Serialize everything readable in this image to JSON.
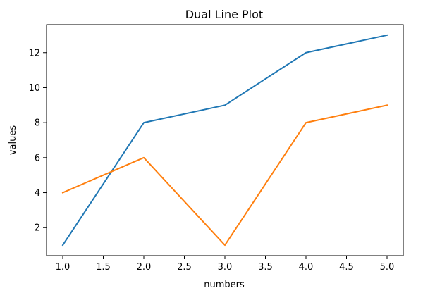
{
  "chart_data": {
    "type": "line",
    "title": "Dual Line Plot",
    "xlabel": "numbers",
    "ylabel": "values",
    "x": [
      1.0,
      2.0,
      3.0,
      4.0,
      5.0
    ],
    "series": [
      {
        "values": [
          1,
          8,
          9,
          12,
          13
        ],
        "color": "#1f77b4"
      },
      {
        "values": [
          4,
          6,
          1,
          8,
          9
        ],
        "color": "#ff7f0e"
      }
    ],
    "xlim": [
      0.8,
      5.2
    ],
    "ylim": [
      0.4,
      13.6
    ],
    "x_ticks": [
      "1.0",
      "1.5",
      "2.0",
      "2.5",
      "3.0",
      "3.5",
      "4.0",
      "4.5",
      "5.0"
    ],
    "y_ticks": [
      "2",
      "4",
      "6",
      "8",
      "10",
      "12"
    ],
    "grid": false,
    "legend": "none"
  }
}
